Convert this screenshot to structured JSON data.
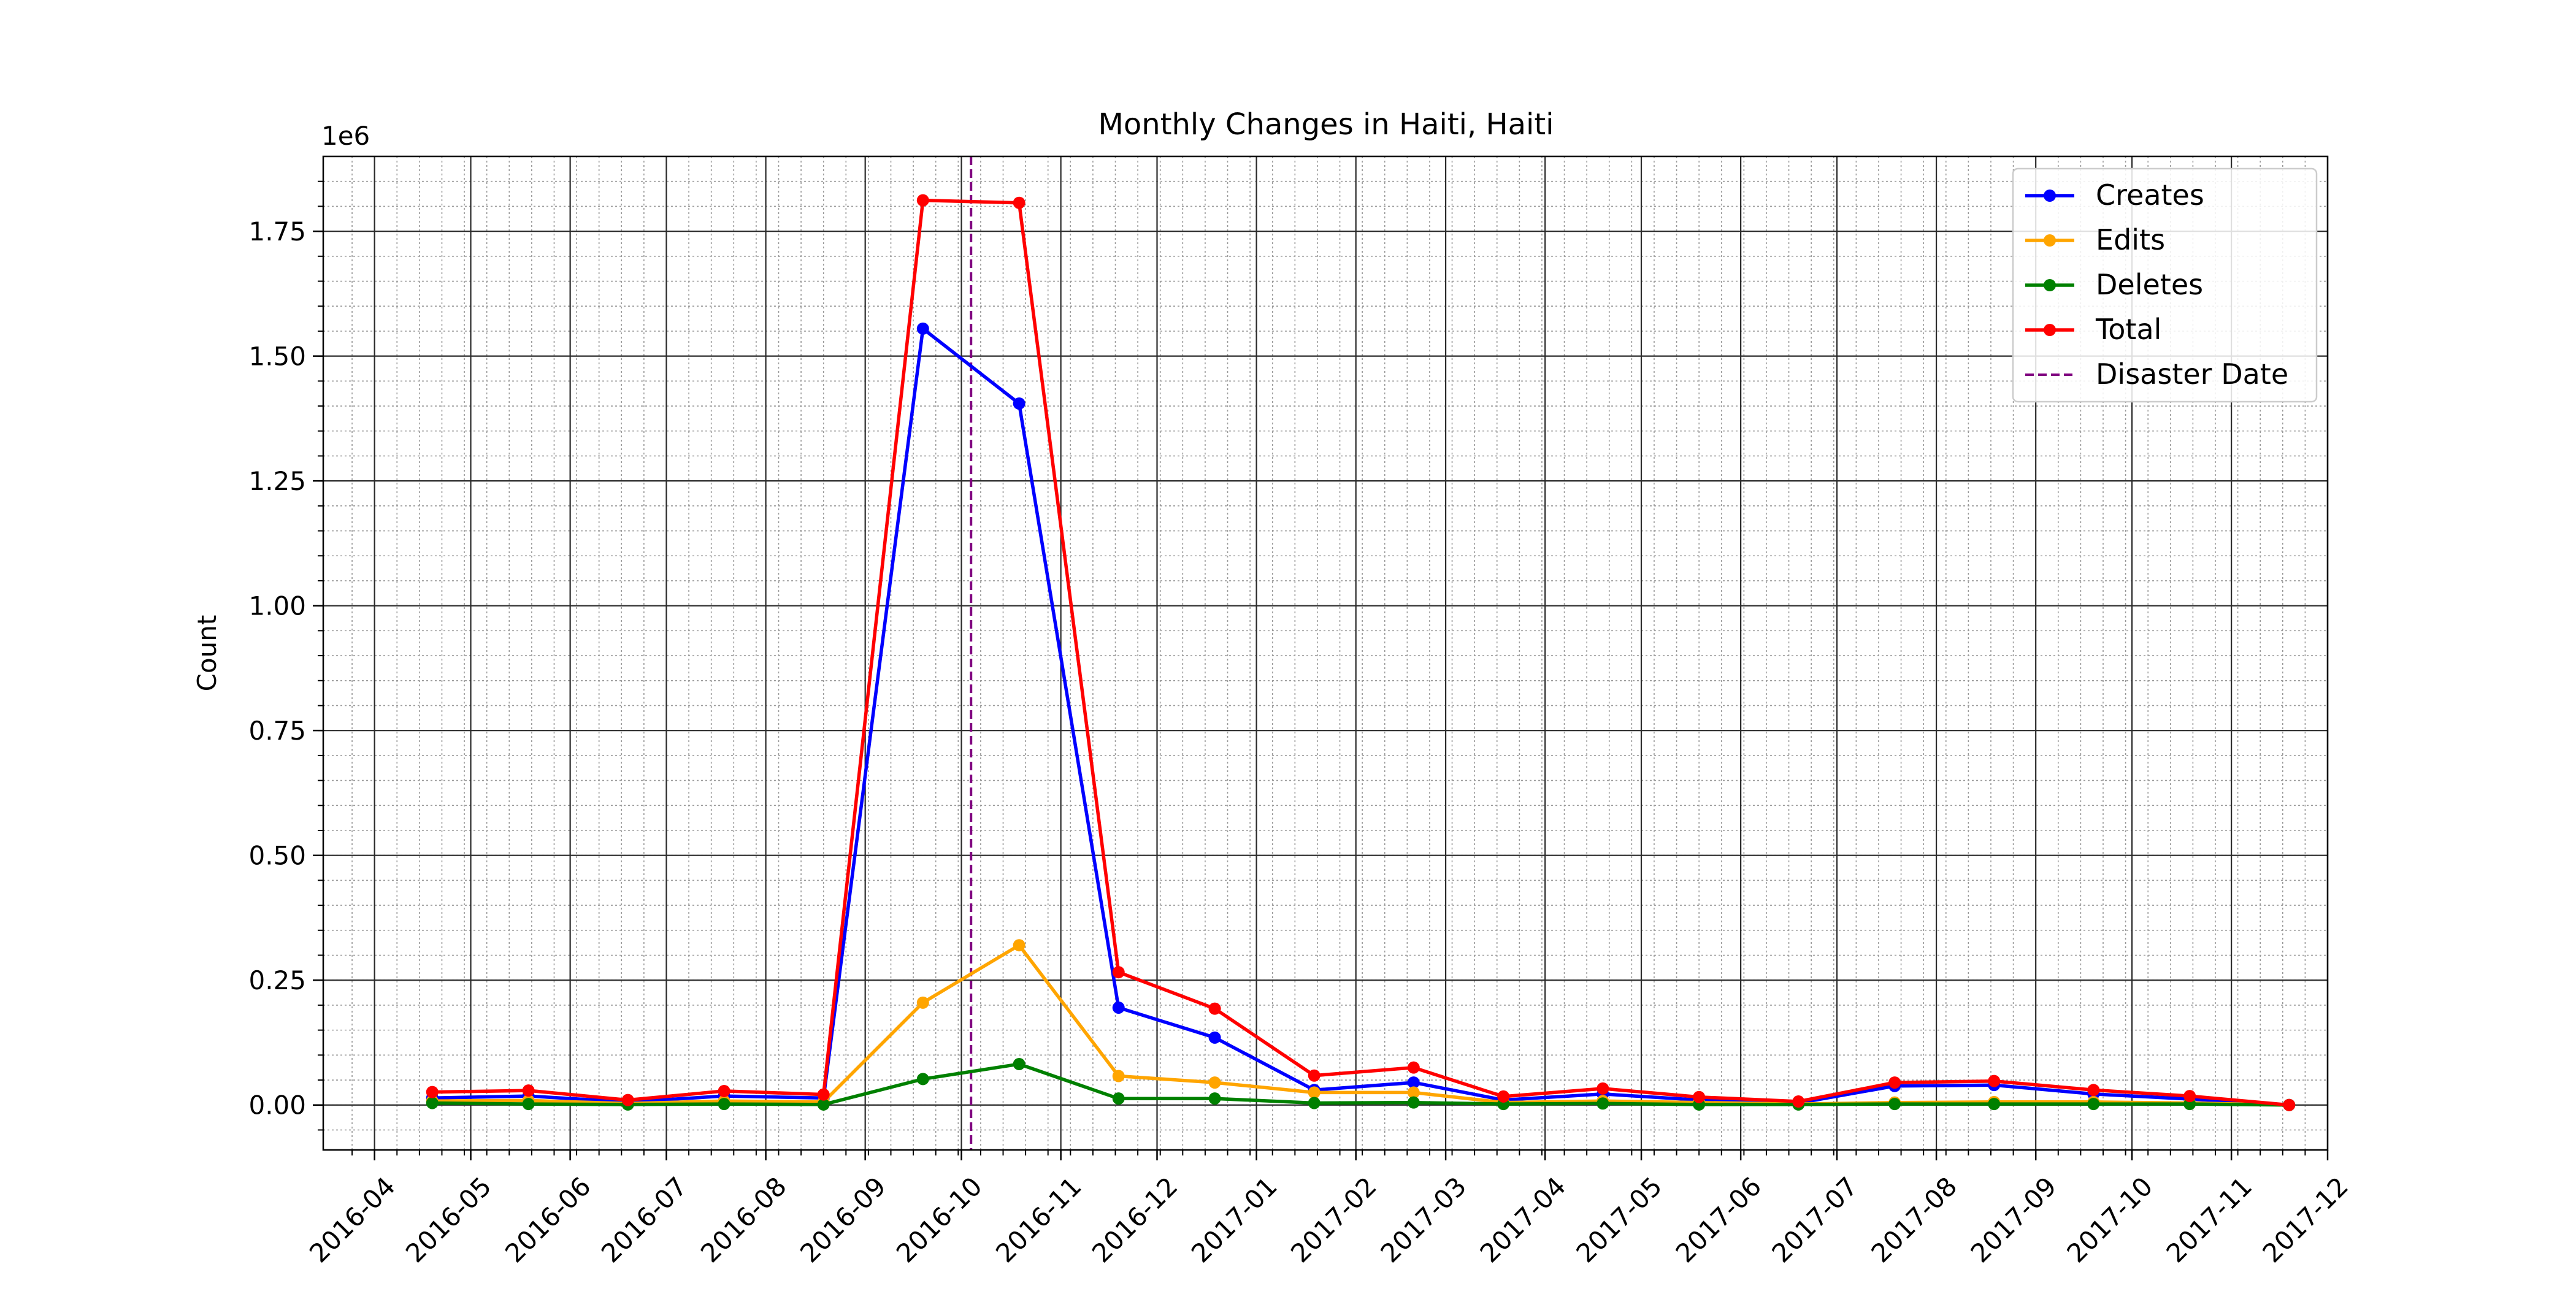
{
  "chart_data": {
    "type": "line",
    "title": "Monthly Changes in Haiti, Haiti",
    "xlabel": "",
    "ylabel": "Count",
    "y_multiplier_label": "1e6",
    "xlim": [
      "2016-03-16",
      "2017-12-01"
    ],
    "ylim": [
      -0.09,
      1.9
    ],
    "y_ticks": [
      0.0,
      0.25,
      0.5,
      0.75,
      1.0,
      1.25,
      1.5,
      1.75
    ],
    "y_tick_labels": [
      "0.00",
      "0.25",
      "0.50",
      "0.75",
      "1.00",
      "1.25",
      "1.50",
      "1.75"
    ],
    "x_ticks": [
      "2016-04-01",
      "2016-05-01",
      "2016-06-01",
      "2016-07-01",
      "2016-08-01",
      "2016-09-01",
      "2016-10-01",
      "2016-11-01",
      "2016-12-01",
      "2017-01-01",
      "2017-02-01",
      "2017-03-01",
      "2017-04-01",
      "2017-05-01",
      "2017-06-01",
      "2017-07-01",
      "2017-08-01",
      "2017-09-01",
      "2017-10-01",
      "2017-11-01",
      "2017-12-01"
    ],
    "x_tick_labels": [
      "2016-04",
      "2016-05",
      "2016-06",
      "2016-07",
      "2016-08",
      "2016-09",
      "2016-10",
      "2016-11",
      "2016-12",
      "2017-01",
      "2017-02",
      "2017-03",
      "2017-04",
      "2017-05",
      "2017-06",
      "2017-07",
      "2017-08",
      "2017-09",
      "2017-10",
      "2017-11",
      "2017-12"
    ],
    "grid": "major and minor",
    "legend_position": "top-right",
    "x": [
      "2016-04-19",
      "2016-05-19",
      "2016-06-19",
      "2016-07-19",
      "2016-08-19",
      "2016-09-19",
      "2016-10-19",
      "2016-11-19",
      "2016-12-19",
      "2017-01-19",
      "2017-02-19",
      "2017-03-19",
      "2017-04-19",
      "2017-05-19",
      "2017-06-19",
      "2017-07-19",
      "2017-08-19",
      "2017-09-19",
      "2017-10-19",
      "2017-11-19"
    ],
    "series": [
      {
        "name": "Creates",
        "color": "#0000ff",
        "values": [
          0.014,
          0.018,
          0.006,
          0.018,
          0.014,
          1.555,
          1.405,
          0.195,
          0.135,
          0.03,
          0.045,
          0.01,
          0.022,
          0.01,
          0.004,
          0.038,
          0.04,
          0.022,
          0.012,
          0.0
        ]
      },
      {
        "name": "Edits",
        "color": "#ffa500",
        "values": [
          0.008,
          0.009,
          0.003,
          0.008,
          0.006,
          0.205,
          0.32,
          0.058,
          0.045,
          0.025,
          0.025,
          0.005,
          0.008,
          0.005,
          0.002,
          0.005,
          0.006,
          0.006,
          0.004,
          0.0
        ]
      },
      {
        "name": "Deletes",
        "color": "#008000",
        "values": [
          0.004,
          0.002,
          0.001,
          0.002,
          0.001,
          0.052,
          0.082,
          0.013,
          0.013,
          0.004,
          0.005,
          0.002,
          0.003,
          0.001,
          0.001,
          0.002,
          0.002,
          0.002,
          0.002,
          0.0
        ]
      },
      {
        "name": "Total",
        "color": "#ff0000",
        "values": [
          0.026,
          0.029,
          0.01,
          0.028,
          0.021,
          1.812,
          1.807,
          0.266,
          0.193,
          0.059,
          0.075,
          0.017,
          0.033,
          0.016,
          0.007,
          0.045,
          0.048,
          0.03,
          0.018,
          0.0
        ]
      }
    ],
    "disaster_date": "2016-10-04",
    "disaster_label": "Disaster Date",
    "disaster_color": "#800080"
  }
}
